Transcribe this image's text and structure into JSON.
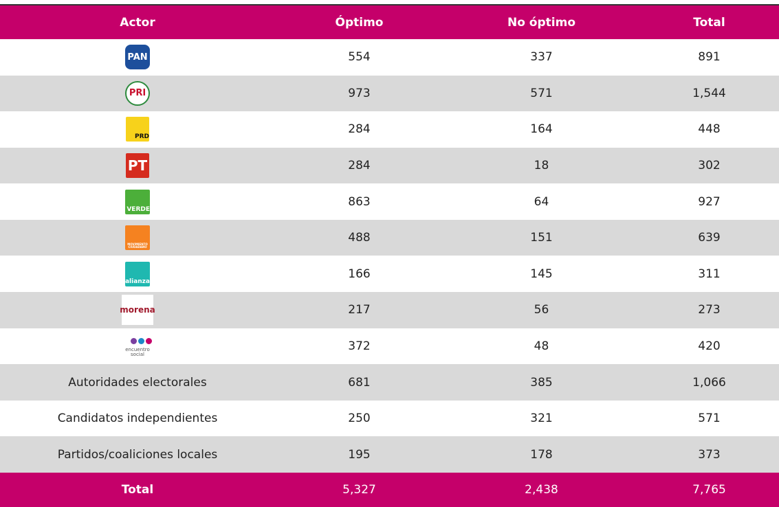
{
  "table": {
    "header": [
      "Actor",
      "Óptimo",
      "No óptimo",
      "Total"
    ],
    "rows": [
      [
        "PAN",
        "554",
        "337",
        "891"
      ],
      [
        "PRI",
        "973",
        "571",
        "1,544"
      ],
      [
        "PRD",
        "284",
        "164",
        "448"
      ],
      [
        "PT",
        "284",
        "18",
        "302"
      ],
      [
        "VERDE",
        "863",
        "64",
        "927"
      ],
      [
        "MOVIMIENTO CIUDADANO",
        "488",
        "151",
        "639"
      ],
      [
        "alianza",
        "166",
        "145",
        "311"
      ],
      [
        "morena",
        "217",
        "56",
        "273"
      ],
      [
        "encuentro social",
        "372",
        "48",
        "420"
      ],
      [
        "Autoridades electorales",
        "681",
        "385",
        "1,066"
      ],
      [
        "Candidatos independientes",
        "250",
        "321",
        "571"
      ],
      [
        "Partidos/coaliciones locales",
        "195",
        "178",
        "373"
      ]
    ],
    "footer": [
      "Total",
      "5,327",
      "2,438",
      "7,765"
    ]
  }
}
